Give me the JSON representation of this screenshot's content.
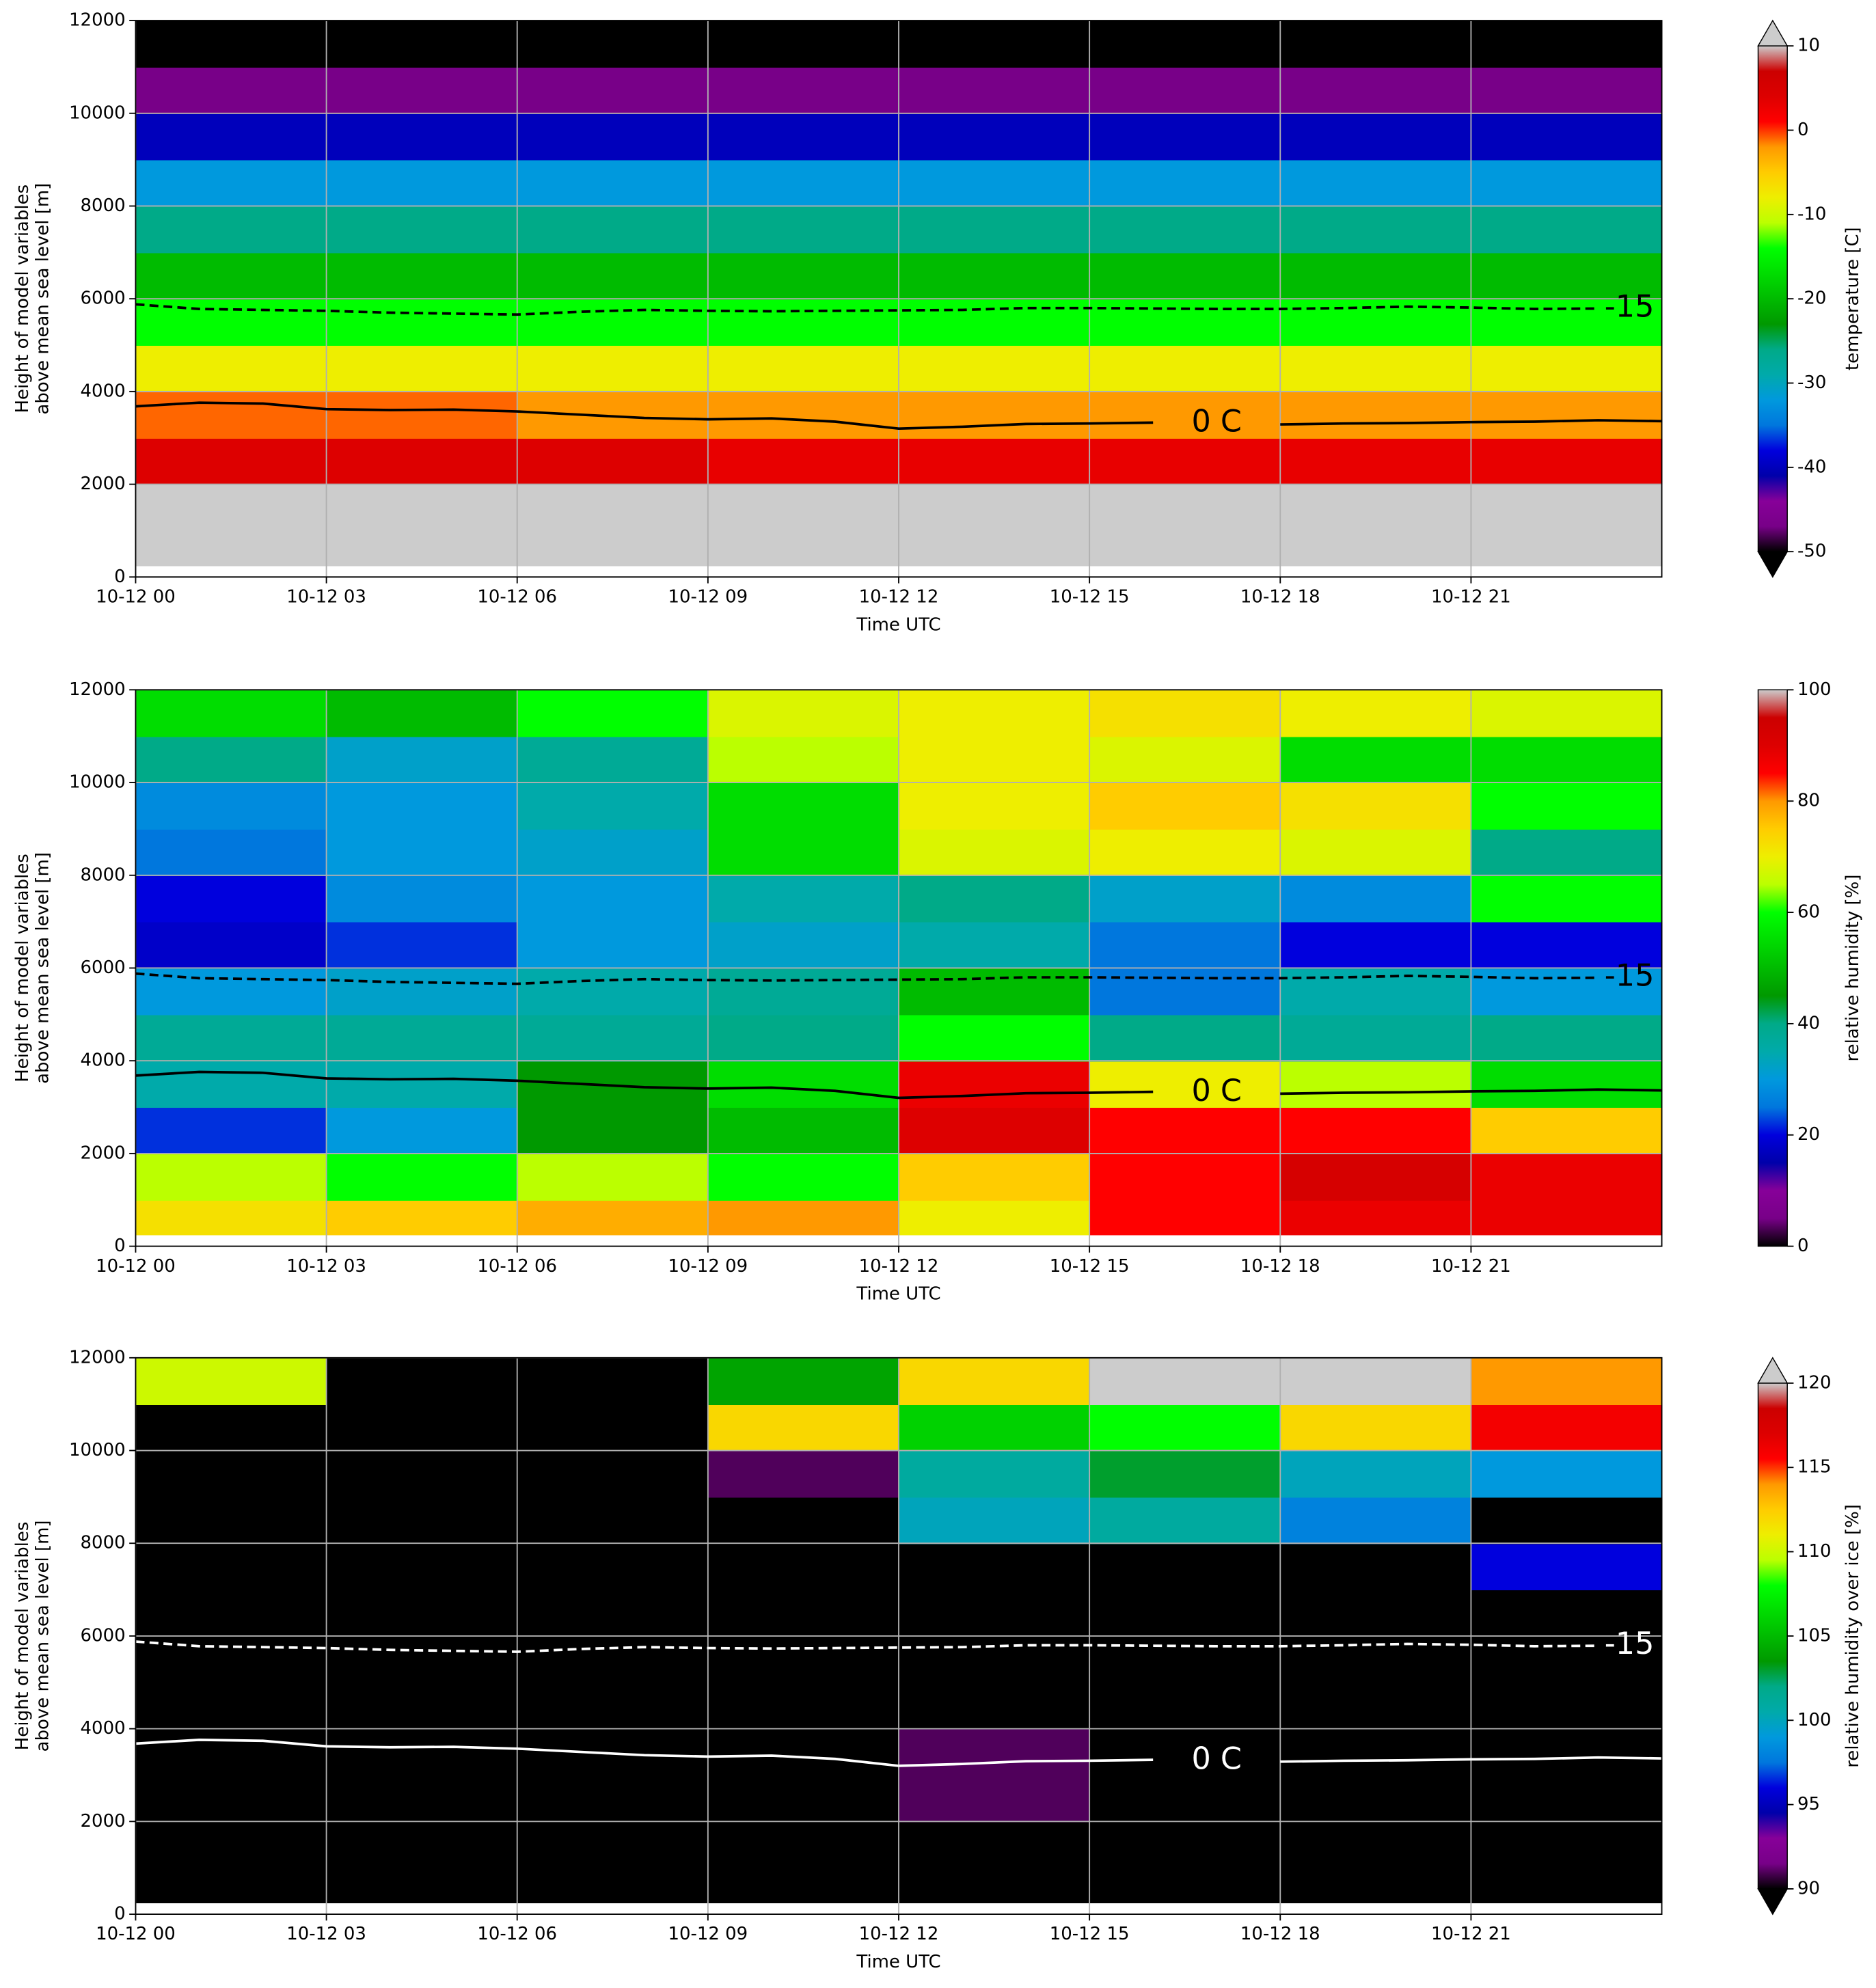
{
  "colormap": [
    "#000000",
    "#780088",
    "#870099",
    "#0000aa",
    "#0000dd",
    "#0077dd",
    "#0099dd",
    "#00aaaa",
    "#00aa88",
    "#009900",
    "#00bb00",
    "#00dd00",
    "#00ff00",
    "#bbff00",
    "#eeee00",
    "#ffcc00",
    "#ff9900",
    "#ff0000",
    "#dd0000",
    "#cc0000",
    "#cccccc"
  ],
  "under_color": "#000000",
  "over_color": "#cccccc",
  "chart_data": [
    {
      "type": "heatmap",
      "xlabel": "Time UTC",
      "ylabel": [
        "Height of model variables",
        "above mean sea level [m]"
      ],
      "xlim": [
        0,
        24
      ],
      "xticks": [
        {
          "value": 0,
          "label": "10-12 00"
        },
        {
          "value": 3,
          "label": "10-12 03"
        },
        {
          "value": 6,
          "label": "10-12 06"
        },
        {
          "value": 9,
          "label": "10-12 09"
        },
        {
          "value": 12,
          "label": "10-12 12"
        },
        {
          "value": 15,
          "label": "10-12 15"
        },
        {
          "value": 18,
          "label": "10-12 18"
        },
        {
          "value": 21,
          "label": "10-12 21"
        }
      ],
      "ylim": [
        0,
        12000
      ],
      "yticks": [
        0,
        2000,
        4000,
        6000,
        8000,
        10000,
        12000
      ],
      "grid": true,
      "x_edges": [
        0,
        3,
        6,
        9,
        12,
        15,
        18,
        21,
        24
      ],
      "y_edges": [
        250,
        1000,
        2000,
        3000,
        4000,
        5000,
        6000,
        7000,
        8000,
        9000,
        10000,
        11000,
        12000
      ],
      "z": [
        [
          12,
          12,
          12,
          12,
          12,
          12,
          12,
          12
        ],
        [
          10.5,
          11,
          11,
          10.8,
          11,
          10.5,
          11,
          10.8
        ],
        [
          4,
          4,
          4,
          3,
          3,
          3,
          3,
          3
        ],
        [
          -1,
          -1,
          -2,
          -2,
          -2,
          -2,
          -2,
          -2
        ],
        [
          -8,
          -8,
          -8,
          -8,
          -8,
          -8,
          -8,
          -8
        ],
        [
          -14,
          -14,
          -14,
          -14,
          -14,
          -14,
          -14,
          -14
        ],
        [
          -20,
          -20,
          -20,
          -20,
          -20,
          -20,
          -20,
          -20
        ],
        [
          -26,
          -26,
          -26,
          -26,
          -26,
          -26,
          -26,
          -26
        ],
        [
          -32,
          -32,
          -32,
          -32,
          -32,
          -32,
          -32,
          -32
        ],
        [
          -40,
          -40,
          -40,
          -40,
          -40,
          -40,
          -40,
          -40
        ],
        [
          -47,
          -47,
          -47,
          -47,
          -47,
          -47,
          -47,
          -47
        ],
        [
          -55,
          -55,
          -55,
          -55,
          -55,
          -55,
          -55,
          -55
        ]
      ],
      "colorbar": {
        "label": "temperature [C]",
        "lim": [
          -50,
          10
        ],
        "ticks": [
          -50,
          -40,
          -30,
          -20,
          -10,
          0,
          10
        ],
        "extend": "both"
      },
      "contour_color": "#000000",
      "contours": [
        {
          "name": "0 C",
          "style": "solid",
          "x": [
            0,
            1,
            2,
            3,
            4,
            5,
            6,
            7,
            8,
            9,
            10,
            11,
            12,
            13,
            14,
            15,
            16,
            17,
            18,
            19,
            20,
            21,
            22,
            23,
            24
          ],
          "values": [
            3680,
            3760,
            3740,
            3620,
            3600,
            3610,
            3570,
            3500,
            3430,
            3400,
            3420,
            3350,
            3200,
            3240,
            3300,
            3310,
            3330,
            null,
            3290,
            3310,
            3320,
            3340,
            3350,
            3380,
            3360
          ]
        },
        {
          "name": "-15",
          "style": "dashed",
          "x": [
            0,
            1,
            2,
            3,
            4,
            5,
            6,
            7,
            8,
            9,
            10,
            11,
            12,
            13,
            14,
            15,
            16,
            17,
            18,
            19,
            20,
            21,
            22,
            23,
            24
          ],
          "values": [
            5880,
            5780,
            5760,
            5740,
            5700,
            5680,
            5660,
            5720,
            5760,
            5740,
            5730,
            5740,
            5750,
            5760,
            5800,
            5800,
            5790,
            5780,
            5780,
            5800,
            5830,
            5810,
            5780,
            5790,
            null
          ]
        }
      ]
    },
    {
      "type": "heatmap",
      "xlabel": "Time UTC",
      "ylabel": [
        "Height of model variables",
        "above mean sea level [m]"
      ],
      "xlim": [
        0,
        24
      ],
      "xticks": [
        {
          "value": 0,
          "label": "10-12 00"
        },
        {
          "value": 3,
          "label": "10-12 03"
        },
        {
          "value": 6,
          "label": "10-12 06"
        },
        {
          "value": 9,
          "label": "10-12 09"
        },
        {
          "value": 12,
          "label": "10-12 12"
        },
        {
          "value": 15,
          "label": "10-12 15"
        },
        {
          "value": 18,
          "label": "10-12 18"
        },
        {
          "value": 21,
          "label": "10-12 21"
        }
      ],
      "ylim": [
        0,
        12000
      ],
      "yticks": [
        0,
        2000,
        4000,
        6000,
        8000,
        10000,
        12000
      ],
      "grid": true,
      "x_edges": [
        0,
        3,
        6,
        9,
        12,
        15,
        18,
        21,
        24
      ],
      "y_edges": [
        250,
        1000,
        2000,
        3000,
        4000,
        5000,
        6000,
        7000,
        8000,
        9000,
        10000,
        11000,
        12000
      ],
      "z": [
        [
          72,
          75,
          78,
          80,
          70,
          85,
          88,
          88
        ],
        [
          65,
          60,
          65,
          60,
          75,
          85,
          92,
          88
        ],
        [
          22,
          30,
          45,
          50,
          90,
          85,
          85,
          75
        ],
        [
          35,
          35,
          45,
          55,
          88,
          70,
          65,
          55
        ],
        [
          38,
          38,
          38,
          40,
          60,
          40,
          38,
          40
        ],
        [
          30,
          32,
          35,
          38,
          50,
          25,
          35,
          30
        ],
        [
          18,
          22,
          30,
          32,
          35,
          25,
          20,
          20
        ],
        [
          20,
          28,
          30,
          35,
          40,
          32,
          28,
          60
        ],
        [
          25,
          30,
          32,
          55,
          68,
          70,
          68,
          40
        ],
        [
          28,
          30,
          35,
          55,
          70,
          75,
          72,
          60
        ],
        [
          40,
          32,
          38,
          65,
          70,
          68,
          55,
          55
        ],
        [
          55,
          50,
          60,
          68,
          70,
          72,
          70,
          68
        ]
      ],
      "colorbar": {
        "label": "relative humidity [%]",
        "lim": [
          0,
          100
        ],
        "ticks": [
          0,
          20,
          40,
          60,
          80,
          100
        ],
        "extend": "neither"
      },
      "contour_color": "#000000",
      "contours": [
        {
          "name": "0 C",
          "style": "solid",
          "x": [
            0,
            1,
            2,
            3,
            4,
            5,
            6,
            7,
            8,
            9,
            10,
            11,
            12,
            13,
            14,
            15,
            16,
            17,
            18,
            19,
            20,
            21,
            22,
            23,
            24
          ],
          "values": [
            3680,
            3760,
            3740,
            3620,
            3600,
            3610,
            3570,
            3500,
            3430,
            3400,
            3420,
            3350,
            3200,
            3240,
            3300,
            3310,
            3330,
            null,
            3290,
            3310,
            3320,
            3340,
            3350,
            3380,
            3360
          ]
        },
        {
          "name": "-15",
          "style": "dashed",
          "x": [
            0,
            1,
            2,
            3,
            4,
            5,
            6,
            7,
            8,
            9,
            10,
            11,
            12,
            13,
            14,
            15,
            16,
            17,
            18,
            19,
            20,
            21,
            22,
            23,
            24
          ],
          "values": [
            5880,
            5780,
            5760,
            5740,
            5700,
            5680,
            5660,
            5720,
            5760,
            5740,
            5730,
            5740,
            5750,
            5760,
            5800,
            5800,
            5790,
            5780,
            5780,
            5800,
            5830,
            5810,
            5780,
            5790,
            null
          ]
        }
      ]
    },
    {
      "type": "heatmap",
      "xlabel": "Time UTC",
      "ylabel": [
        "Height of model variables",
        "above mean sea level [m]"
      ],
      "xlim": [
        0,
        24
      ],
      "xticks": [
        {
          "value": 0,
          "label": "10-12 00"
        },
        {
          "value": 3,
          "label": "10-12 03"
        },
        {
          "value": 6,
          "label": "10-12 06"
        },
        {
          "value": 9,
          "label": "10-12 09"
        },
        {
          "value": 12,
          "label": "10-12 12"
        },
        {
          "value": 15,
          "label": "10-12 15"
        },
        {
          "value": 18,
          "label": "10-12 18"
        },
        {
          "value": 21,
          "label": "10-12 21"
        }
      ],
      "ylim": [
        0,
        12000
      ],
      "yticks": [
        0,
        2000,
        4000,
        6000,
        8000,
        10000,
        12000
      ],
      "grid": true,
      "x_edges": [
        0,
        3,
        6,
        9,
        12,
        15,
        18,
        21,
        24
      ],
      "y_edges": [
        250,
        1000,
        2000,
        3000,
        4000,
        5000,
        6000,
        7000,
        8000,
        9000,
        10000,
        11000,
        12000
      ],
      "z": [
        [
          80,
          80,
          80,
          80,
          80,
          80,
          80,
          80
        ],
        [
          80,
          80,
          80,
          80,
          80,
          80,
          80,
          80
        ],
        [
          80,
          80,
          80,
          80,
          91,
          80,
          80,
          80
        ],
        [
          80,
          80,
          80,
          80,
          91,
          80,
          80,
          80
        ],
        [
          80,
          80,
          80,
          80,
          80,
          80,
          80,
          80
        ],
        [
          80,
          80,
          80,
          80,
          80,
          80,
          80,
          80
        ],
        [
          80,
          80,
          80,
          80,
          80,
          80,
          80,
          80
        ],
        [
          80,
          80,
          80,
          80,
          80,
          80,
          80,
          96
        ],
        [
          80,
          80,
          80,
          80,
          100,
          101,
          98,
          80
        ],
        [
          80,
          80,
          80,
          91,
          101,
          103,
          100,
          99
        ],
        [
          80,
          80,
          80,
          112,
          106,
          108,
          112,
          116
        ],
        [
          110,
          80,
          80,
          104,
          112,
          120,
          121,
          114
        ]
      ],
      "colorbar": {
        "label": "relative humidity over ice [%]",
        "lim": [
          90,
          120
        ],
        "ticks": [
          90,
          95,
          100,
          105,
          110,
          115,
          120
        ],
        "extend": "both"
      },
      "contour_color": "#ffffff",
      "contours": [
        {
          "name": "0 C",
          "style": "solid",
          "x": [
            0,
            1,
            2,
            3,
            4,
            5,
            6,
            7,
            8,
            9,
            10,
            11,
            12,
            13,
            14,
            15,
            16,
            17,
            18,
            19,
            20,
            21,
            22,
            23,
            24
          ],
          "values": [
            3680,
            3760,
            3740,
            3620,
            3600,
            3610,
            3570,
            3500,
            3430,
            3400,
            3420,
            3350,
            3200,
            3240,
            3300,
            3310,
            3330,
            null,
            3290,
            3310,
            3320,
            3340,
            3350,
            3380,
            3360
          ]
        },
        {
          "name": "-15",
          "style": "dashed",
          "x": [
            0,
            1,
            2,
            3,
            4,
            5,
            6,
            7,
            8,
            9,
            10,
            11,
            12,
            13,
            14,
            15,
            16,
            17,
            18,
            19,
            20,
            21,
            22,
            23,
            24
          ],
          "values": [
            5880,
            5780,
            5760,
            5740,
            5700,
            5680,
            5660,
            5720,
            5760,
            5740,
            5730,
            5740,
            5750,
            5760,
            5800,
            5800,
            5790,
            5780,
            5780,
            5800,
            5830,
            5810,
            5780,
            5790,
            null
          ]
        }
      ]
    }
  ]
}
